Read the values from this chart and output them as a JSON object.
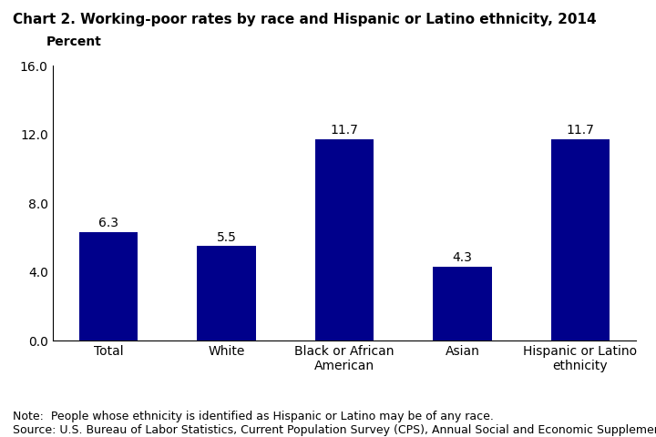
{
  "title": "Chart 2. Working-poor rates by race and Hispanic or Latino ethnicity, 2014",
  "ylabel": "Percent",
  "categories": [
    "Total",
    "White",
    "Black or African\nAmerican",
    "Asian",
    "Hispanic or Latino\nethnicity"
  ],
  "values": [
    6.3,
    5.5,
    11.7,
    4.3,
    11.7
  ],
  "bar_color": "#00008B",
  "ylim": [
    0,
    16.0
  ],
  "yticks": [
    0.0,
    4.0,
    8.0,
    12.0,
    16.0
  ],
  "note_line1": "Note:  People whose ethnicity is identified as Hispanic or Latino may be of any race.",
  "note_line2": "Source: U.S. Bureau of Labor Statistics, Current Population Survey (CPS), Annual Social and Economic Supplement (ASEC).",
  "title_fontsize": 11,
  "value_fontsize": 10,
  "tick_fontsize": 10,
  "note_fontsize": 9,
  "ylabel_fontsize": 10,
  "bar_width": 0.5
}
